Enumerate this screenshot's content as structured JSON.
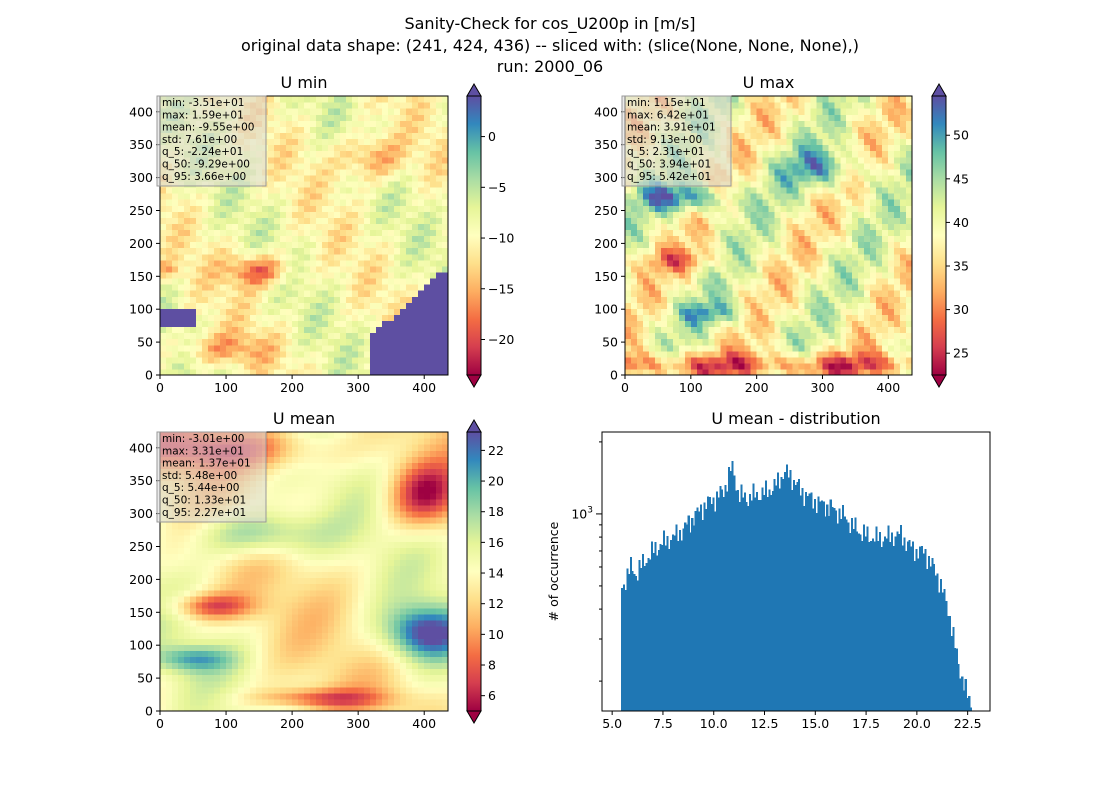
{
  "figure": {
    "title_lines": [
      "Sanity-Check for cos_U200p in [m/s]",
      "original data shape: (241, 424, 436) -- sliced with: (slice(None, None, None),)",
      "run: 2000_06"
    ]
  },
  "chart_data": [
    {
      "type": "heatmap",
      "id": "u_min",
      "title": "U min",
      "colormap": "Spectral",
      "xlim": [
        0,
        436
      ],
      "ylim": [
        0,
        424
      ],
      "xticks": [
        0,
        100,
        200,
        300,
        400
      ],
      "yticks": [
        0,
        50,
        100,
        150,
        200,
        250,
        300,
        350,
        400
      ],
      "colorbar": {
        "vmin": -23.5,
        "vmax": 4.0,
        "extend": "both",
        "ticks": [
          0,
          -5,
          -10,
          -15,
          -20
        ]
      },
      "stats": [
        "min: -3.51e+01",
        "max: 1.59e+01",
        "mean: -9.55e+00",
        "std: 7.61e+00",
        "q_5: -2.24e+01",
        "q_50: -9.29e+00",
        "q_95: 3.66e+00"
      ]
    },
    {
      "type": "heatmap",
      "id": "u_max",
      "title": "U max",
      "colormap": "Spectral",
      "xlim": [
        0,
        436
      ],
      "ylim": [
        0,
        424
      ],
      "xticks": [
        0,
        100,
        200,
        300,
        400
      ],
      "yticks": [
        0,
        50,
        100,
        150,
        200,
        250,
        300,
        350,
        400
      ],
      "colorbar": {
        "vmin": 22.5,
        "vmax": 54.5,
        "extend": "both",
        "ticks": [
          50,
          45,
          40,
          35,
          30,
          25
        ]
      },
      "stats": [
        "min: 1.15e+01",
        "max: 6.42e+01",
        "mean: 3.91e+01",
        "std: 9.13e+00",
        "q_5: 2.31e+01",
        "q_50: 3.94e+01",
        "q_95: 5.42e+01"
      ]
    },
    {
      "type": "heatmap",
      "id": "u_mean",
      "title": "U mean",
      "colormap": "Spectral",
      "xlim": [
        0,
        436
      ],
      "ylim": [
        0,
        424
      ],
      "xticks": [
        0,
        100,
        200,
        300,
        400
      ],
      "yticks": [
        0,
        50,
        100,
        150,
        200,
        250,
        300,
        350,
        400
      ],
      "colorbar": {
        "vmin": 5.0,
        "vmax": 23.2,
        "extend": "both",
        "ticks": [
          22,
          20,
          18,
          16,
          14,
          12,
          10,
          8,
          6
        ]
      },
      "stats": [
        "min: -3.01e+00",
        "max: 3.31e+01",
        "mean: 1.37e+01",
        "std: 5.48e+00",
        "q_5: 5.44e+00",
        "q_50: 1.33e+01",
        "q_95: 2.27e+01"
      ]
    },
    {
      "type": "bar",
      "id": "u_mean_distribution",
      "title": "U mean - distribution",
      "ylabel": "# of occurrence",
      "xlabel": "",
      "yscale": "log",
      "xlim": [
        4.5,
        23.6
      ],
      "ylim": [
        150,
        2200
      ],
      "xticks": [
        5.0,
        7.5,
        10.0,
        12.5,
        15.0,
        17.5,
        20.0,
        22.5
      ],
      "xtick_labels": [
        "5.0",
        "7.5",
        "10.0",
        "12.5",
        "15.0",
        "17.5",
        "20.0",
        "22.5"
      ],
      "ytick_labels": [
        "10^3"
      ],
      "bar_color": "#1f77b4",
      "bins": {
        "start": 5.44,
        "end": 22.7,
        "count": 200
      },
      "profile": [
        [
          5.44,
          480
        ],
        [
          5.6,
          520
        ],
        [
          5.9,
          600
        ],
        [
          6.2,
          560
        ],
        [
          6.5,
          620
        ],
        [
          7.0,
          700
        ],
        [
          7.5,
          760
        ],
        [
          8.0,
          800
        ],
        [
          8.5,
          860
        ],
        [
          9.0,
          960
        ],
        [
          9.5,
          1080
        ],
        [
          10.0,
          1150
        ],
        [
          10.5,
          1250
        ],
        [
          10.9,
          1580
        ],
        [
          11.2,
          1220
        ],
        [
          11.6,
          1160
        ],
        [
          12.0,
          1200
        ],
        [
          12.5,
          1230
        ],
        [
          13.0,
          1300
        ],
        [
          13.5,
          1500
        ],
        [
          13.9,
          1400
        ],
        [
          14.3,
          1250
        ],
        [
          14.8,
          1150
        ],
        [
          15.3,
          1100
        ],
        [
          15.8,
          1050
        ],
        [
          16.3,
          1000
        ],
        [
          16.8,
          900
        ],
        [
          17.3,
          830
        ],
        [
          17.8,
          800
        ],
        [
          18.3,
          790
        ],
        [
          18.8,
          810
        ],
        [
          19.2,
          820
        ],
        [
          19.6,
          740
        ],
        [
          20.0,
          700
        ],
        [
          20.4,
          690
        ],
        [
          20.7,
          620
        ],
        [
          21.0,
          560
        ],
        [
          21.3,
          470
        ],
        [
          21.6,
          380
        ],
        [
          21.9,
          270
        ],
        [
          22.2,
          210
        ],
        [
          22.5,
          170
        ],
        [
          22.7,
          160
        ]
      ]
    }
  ]
}
